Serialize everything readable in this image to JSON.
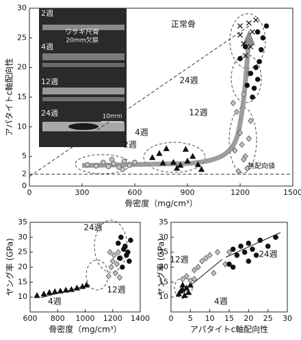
{
  "chart_data": [
    {
      "type": "scatter",
      "ylabel": "アパタイトc軸配向性",
      "xlabel": "骨密度（mg/cm³）",
      "xlim": [
        0,
        1500
      ],
      "ylim": [
        0,
        30
      ],
      "xticks": [
        0,
        300,
        600,
        900,
        1200,
        1500
      ],
      "yticks": [
        0,
        2,
        5,
        10,
        15,
        20,
        25,
        30
      ],
      "annotation": "無配向値",
      "inset": {
        "week_labels": [
          "2週",
          "4週",
          "12週",
          "24週"
        ],
        "caption": [
          "ウサギ尺骨",
          "20mm欠損"
        ],
        "scale_bar": "10mm"
      },
      "series": [
        {
          "name": "2週",
          "color": "#c4c4c4",
          "marker": "circle",
          "x": [
            330,
            380,
            420,
            450,
            480,
            510,
            540,
            570,
            600,
            530,
            470
          ],
          "values": [
            3.6,
            3.4,
            4.0,
            3.3,
            3.8,
            3.2,
            4.2,
            3.5,
            4.0,
            2.8,
            4.5
          ]
        },
        {
          "name": "4週",
          "color": "#111111",
          "marker": "triangle",
          "x": [
            700,
            740,
            780,
            820,
            840,
            860,
            900,
            930,
            960,
            980,
            890,
            760
          ],
          "values": [
            4.8,
            5.5,
            6.3,
            4.0,
            3.0,
            3.5,
            4.2,
            5.0,
            3.6,
            2.8,
            6.2,
            3.9
          ]
        },
        {
          "name": "12週",
          "color": "#c4c4c4",
          "marker": "diamond",
          "x": [
            1160,
            1180,
            1200,
            1210,
            1230,
            1240,
            1190,
            1220,
            1250,
            1170,
            1250,
            1220,
            1260
          ],
          "values": [
            14.0,
            12.5,
            9.0,
            7.0,
            5.0,
            3.0,
            2.5,
            4.5,
            8.0,
            6.0,
            19.0,
            15.5,
            11.0
          ]
        },
        {
          "name": "24週",
          "color": "#111111",
          "marker": "circle",
          "x": [
            1200,
            1230,
            1260,
            1280,
            1300,
            1310,
            1320,
            1240,
            1270,
            1290,
            1330,
            1350,
            1300
          ],
          "values": [
            21.5,
            23.5,
            19,
            16.5,
            18,
            21,
            23,
            17,
            15,
            20,
            25,
            27,
            26
          ]
        },
        {
          "name": "正常骨",
          "color": "#111111",
          "marker": "x",
          "x": [
            1220,
            1250,
            1270,
            1200,
            1290,
            1230,
            1260,
            1200
          ],
          "values": [
            24,
            27.5,
            26,
            25.5,
            28,
            22,
            23.5,
            27
          ]
        }
      ]
    },
    {
      "type": "scatter",
      "ylabel": "ヤング率 (GPa)",
      "xlabel": "骨密度（mg/cm³）",
      "xlim": [
        600,
        1400
      ],
      "ylim": [
        5,
        35
      ],
      "xticks": [
        600,
        800,
        1000,
        1200,
        1400
      ],
      "yticks": [
        10,
        15,
        20,
        25,
        30,
        35
      ],
      "series": [
        {
          "name": "4週",
          "color": "#111111",
          "marker": "triangle",
          "x": [
            650,
            700,
            740,
            780,
            820,
            860,
            900,
            940,
            980,
            1010
          ],
          "values": [
            10.5,
            11,
            11.5,
            11.8,
            12,
            12.3,
            12.5,
            13,
            13.5,
            14
          ]
        },
        {
          "name": "12週",
          "color": "#c4c4c4",
          "marker": "diamond",
          "x": [
            1170,
            1190,
            1200,
            1210,
            1220,
            1230,
            1240,
            1250,
            1260,
            1180
          ],
          "values": [
            17,
            20,
            22,
            24,
            18,
            21,
            25,
            16.5,
            23,
            25
          ]
        },
        {
          "name": "24週",
          "color": "#111111",
          "marker": "circle",
          "x": [
            1240,
            1260,
            1280,
            1300,
            1320,
            1330,
            1270,
            1290,
            1310,
            1250
          ],
          "values": [
            28,
            30,
            26,
            24,
            22,
            29,
            20,
            27,
            25,
            23
          ]
        }
      ]
    },
    {
      "type": "scatter",
      "ylabel": "ヤング率 (GPa)",
      "xlabel": "アパタイトc軸配向性",
      "xlim": [
        0,
        30
      ],
      "ylim": [
        5,
        35
      ],
      "xticks": [
        0,
        5,
        10,
        15,
        20,
        25,
        30
      ],
      "yticks": [
        10,
        15,
        20,
        25,
        30,
        35
      ],
      "series": [
        {
          "name": "4週",
          "color": "#111111",
          "marker": "triangle",
          "x": [
            2,
            3,
            3.5,
            4,
            4.5,
            5,
            3,
            2.5
          ],
          "values": [
            11,
            12.5,
            10.5,
            13,
            11.5,
            14,
            14,
            12
          ]
        },
        {
          "name": "12週",
          "color": "#c4c4c4",
          "marker": "diamond",
          "x": [
            3,
            4,
            5,
            6,
            7,
            8,
            9,
            10,
            12,
            14,
            15,
            17,
            6,
            11
          ],
          "values": [
            16,
            17,
            15.5,
            19,
            20,
            22,
            23,
            24,
            25,
            21,
            25,
            24,
            16,
            18
          ]
        },
        {
          "name": "24週",
          "color": "#111111",
          "marker": "circle",
          "x": [
            15,
            16,
            17,
            18,
            19,
            20,
            21,
            22,
            23,
            25,
            27,
            16,
            20
          ],
          "values": [
            21,
            26,
            24,
            27,
            25,
            28,
            26,
            24,
            29,
            27,
            30,
            20,
            22
          ]
        }
      ]
    }
  ]
}
